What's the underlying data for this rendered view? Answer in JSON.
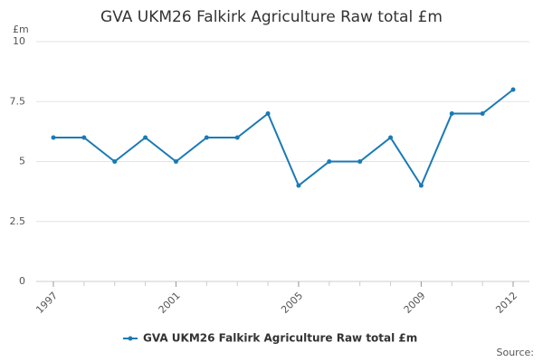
{
  "chart_data": {
    "type": "line",
    "title": "GVA UKM26 Falkirk Agriculture Raw total £m",
    "y_label": "£m",
    "x": [
      1997,
      1998,
      1999,
      2000,
      2001,
      2002,
      2003,
      2004,
      2005,
      2006,
      2007,
      2008,
      2009,
      2010,
      2011,
      2012
    ],
    "series": [
      {
        "name": "GVA UKM26 Falkirk Agriculture Raw total £m",
        "color": "#1a7ab5",
        "values": [
          6,
          6,
          5,
          6,
          5,
          6,
          6,
          7,
          4,
          5,
          5,
          6,
          4,
          7,
          7,
          8
        ]
      }
    ],
    "xlim": [
      1997,
      2012
    ],
    "xticks": [
      1997,
      2001,
      2005,
      2009,
      2012
    ],
    "ylim": [
      0,
      10
    ],
    "yticks": [
      0,
      2.5,
      5,
      7.5,
      10
    ],
    "grid": true,
    "source": "Source:"
  }
}
